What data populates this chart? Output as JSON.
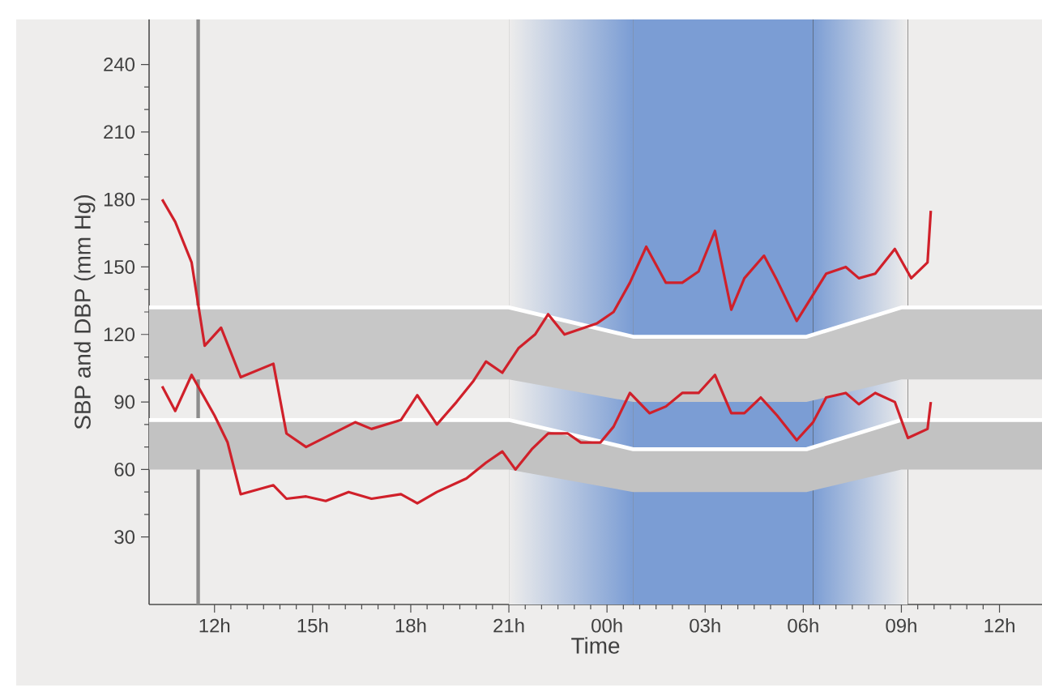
{
  "chart_data": {
    "type": "line",
    "xlabel": "Time",
    "ylabel": "SBP and DBP (mm Hg)",
    "marker": "none",
    "xlim": [
      "2000-01-01T10:00",
      "2000-01-02T13:18"
    ],
    "ylim": [
      0,
      260
    ],
    "xticks": [
      {
        "value": "2000-01-01T12:00",
        "label": "12h"
      },
      {
        "value": "2000-01-01T15:00",
        "label": "15h"
      },
      {
        "value": "2000-01-01T18:00",
        "label": "18h"
      },
      {
        "value": "2000-01-01T21:00",
        "label": "21h"
      },
      {
        "value": "2000-01-02T00:00",
        "label": "00h"
      },
      {
        "value": "2000-01-02T03:00",
        "label": "03h"
      },
      {
        "value": "2000-01-02T06:00",
        "label": "06h"
      },
      {
        "value": "2000-01-02T09:00",
        "label": "09h"
      },
      {
        "value": "2000-01-02T12:00",
        "label": "12h"
      }
    ],
    "yticks": [
      30,
      60,
      90,
      120,
      150,
      180,
      210,
      240
    ],
    "bands": [
      {
        "axis": "x",
        "from": "2000-01-01T21:00",
        "to": "2000-01-02T00:48"
      },
      {
        "axis": "x",
        "from": "2000-01-02T00:48",
        "to": "2000-01-02T06:18",
        "color": "#7b9dd4"
      },
      {
        "axis": "x",
        "from": "2000-01-02T06:18",
        "to": "2000-01-02T09:12"
      }
    ],
    "ref_lines": [
      {
        "axis": "x",
        "value": "2000-01-01T11:30",
        "color": "#8c8c8c"
      }
    ],
    "series": [
      {
        "color": "#ffffff",
        "x": [
          "2000-01-01T10:00",
          "2000-01-01T21:00",
          "2000-01-02T00:48",
          "2000-01-02T06:06",
          "2000-01-02T09:00",
          "2000-01-02T13:18"
        ],
        "values": [
          132,
          132,
          119,
          119,
          132,
          132
        ],
        "lower": [
          100,
          100,
          90,
          90,
          100,
          100
        ],
        "upper": [
          132,
          132,
          119,
          119,
          132,
          132
        ]
      },
      {
        "color": "#ffffff",
        "x": [
          "2000-01-01T10:00",
          "2000-01-01T21:00",
          "2000-01-02T00:48",
          "2000-01-02T06:06",
          "2000-01-02T09:00",
          "2000-01-02T13:18"
        ],
        "values": [
          82,
          82,
          69,
          69,
          82,
          82
        ],
        "lower": [
          60,
          60,
          50,
          50,
          60,
          60
        ],
        "upper": [
          82,
          82,
          69,
          69,
          82,
          82
        ]
      },
      {
        "color": "#d0202a",
        "x": [
          "2000-01-01T10:24",
          "2000-01-01T10:48",
          "2000-01-01T11:18",
          "2000-01-01T11:42",
          "2000-01-01T12:12",
          "2000-01-01T12:48",
          "2000-01-01T13:48",
          "2000-01-01T14:12",
          "2000-01-01T14:48",
          "2000-01-01T16:18",
          "2000-01-01T16:48",
          "2000-01-01T17:42",
          "2000-01-01T18:12",
          "2000-01-01T18:48",
          "2000-01-01T19:24",
          "2000-01-01T19:54",
          "2000-01-01T20:18",
          "2000-01-01T20:48",
          "2000-01-01T21:18",
          "2000-01-01T21:48",
          "2000-01-01T22:12",
          "2000-01-01T22:42",
          "2000-01-01T23:42",
          "2000-01-02T00:12",
          "2000-01-02T00:42",
          "2000-01-02T01:12",
          "2000-01-02T01:48",
          "2000-01-02T02:18",
          "2000-01-02T02:48",
          "2000-01-02T03:18",
          "2000-01-02T03:48",
          "2000-01-02T04:12",
          "2000-01-02T04:48",
          "2000-01-02T05:12",
          "2000-01-02T05:48",
          "2000-01-02T06:42",
          "2000-01-02T07:18",
          "2000-01-02T07:42",
          "2000-01-02T08:12",
          "2000-01-02T08:48",
          "2000-01-02T09:18",
          "2000-01-02T09:48",
          "2000-01-02T09:54"
        ],
        "values": [
          180,
          170,
          152,
          115,
          123,
          101,
          107,
          76,
          70,
          81,
          78,
          82,
          93,
          80,
          90,
          99,
          108,
          103,
          114,
          120,
          129,
          120,
          125,
          130,
          143,
          159,
          143,
          143,
          148,
          166,
          131,
          145,
          155,
          144,
          126,
          147,
          150,
          145,
          147,
          158,
          145,
          152,
          175
        ]
      },
      {
        "color": "#d0202a",
        "x": [
          "2000-01-01T10:24",
          "2000-01-01T10:48",
          "2000-01-01T11:18",
          "2000-01-01T12:00",
          "2000-01-01T12:24",
          "2000-01-01T12:48",
          "2000-01-01T13:48",
          "2000-01-01T14:12",
          "2000-01-01T14:48",
          "2000-01-01T15:24",
          "2000-01-01T16:06",
          "2000-01-01T16:48",
          "2000-01-01T17:42",
          "2000-01-01T18:12",
          "2000-01-01T18:48",
          "2000-01-01T19:42",
          "2000-01-01T20:18",
          "2000-01-01T20:48",
          "2000-01-01T21:12",
          "2000-01-01T21:42",
          "2000-01-01T22:12",
          "2000-01-01T22:48",
          "2000-01-01T23:12",
          "2000-01-01T23:48",
          "2000-01-02T00:12",
          "2000-01-02T00:42",
          "2000-01-02T01:18",
          "2000-01-02T01:48",
          "2000-01-02T02:18",
          "2000-01-02T02:48",
          "2000-01-02T03:18",
          "2000-01-02T03:48",
          "2000-01-02T04:12",
          "2000-01-02T04:42",
          "2000-01-02T05:12",
          "2000-01-02T05:48",
          "2000-01-02T06:18",
          "2000-01-02T06:42",
          "2000-01-02T07:18",
          "2000-01-02T07:42",
          "2000-01-02T08:12",
          "2000-01-02T08:48",
          "2000-01-02T09:12",
          "2000-01-02T09:48",
          "2000-01-02T09:54"
        ],
        "values": [
          97,
          86,
          102,
          84,
          72,
          49,
          53,
          47,
          48,
          46,
          50,
          47,
          49,
          45,
          50,
          56,
          63,
          68,
          60,
          69,
          76,
          76,
          72,
          72,
          79,
          94,
          85,
          88,
          94,
          94,
          102,
          85,
          85,
          92,
          84,
          73,
          81,
          92,
          94,
          89,
          94,
          90,
          74,
          78,
          90
        ]
      }
    ]
  }
}
